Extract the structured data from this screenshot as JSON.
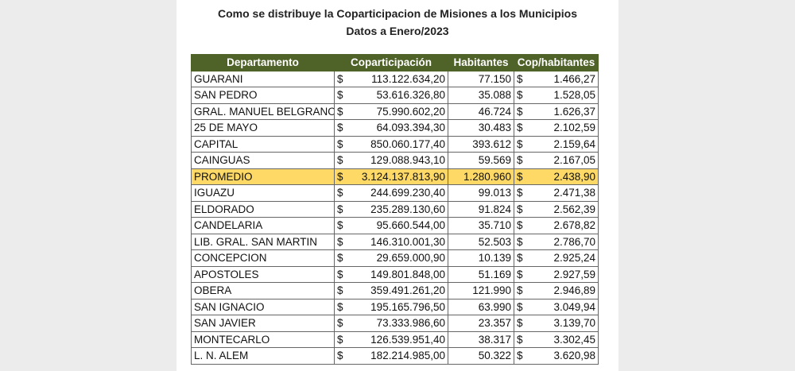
{
  "header": {
    "title": "Como se distribuye la Coparticipacion de Misiones a los Municipios",
    "subtitle": "Datos a Enero/2023"
  },
  "table": {
    "currency_symbol": "$",
    "columns": [
      "Departamento",
      "Coparticipación",
      "Habitantes",
      "Cop/habitantes"
    ],
    "highlight_row": 6,
    "rows": [
      [
        "GUARANI",
        "113.122.634,20",
        "77.150",
        "1.466,27"
      ],
      [
        "SAN PEDRO",
        "53.616.326,80",
        "35.088",
        "1.528,05"
      ],
      [
        "GRAL. MANUEL BELGRANO",
        "75.990.602,20",
        "46.724",
        "1.626,37"
      ],
      [
        "25 DE MAYO",
        "64.093.394,30",
        "30.483",
        "2.102,59"
      ],
      [
        "CAPITAL",
        "850.060.177,40",
        "393.612",
        "2.159,64"
      ],
      [
        "CAINGUAS",
        "129.088.943,10",
        "59.569",
        "2.167,05"
      ],
      [
        "PROMEDIO",
        "3.124.137.813,90",
        "1.280.960",
        "2.438,90"
      ],
      [
        "IGUAZU",
        "244.699.230,40",
        "99.013",
        "2.471,38"
      ],
      [
        "ELDORADO",
        "235.289.130,60",
        "91.824",
        "2.562,39"
      ],
      [
        "CANDELARIA",
        "95.660.544,00",
        "35.710",
        "2.678,82"
      ],
      [
        "LIB. GRAL. SAN MARTIN",
        "146.310.001,30",
        "52.503",
        "2.786,70"
      ],
      [
        "CONCEPCION",
        "29.659.000,90",
        "10.139",
        "2.925,24"
      ],
      [
        "APOSTOLES",
        "149.801.848,00",
        "51.169",
        "2.927,59"
      ],
      [
        "OBERA",
        "359.491.261,20",
        "121.990",
        "2.946,89"
      ],
      [
        "SAN IGNACIO",
        "195.165.796,50",
        "63.990",
        "3.049,94"
      ],
      [
        "SAN JAVIER",
        "73.333.986,60",
        "23.357",
        "3.139,70"
      ],
      [
        "MONTECARLO",
        "126.539.951,40",
        "38.317",
        "3.302,45"
      ],
      [
        "L. N. ALEM",
        "182.214.985,00",
        "50.322",
        "3.620,98"
      ]
    ]
  }
}
